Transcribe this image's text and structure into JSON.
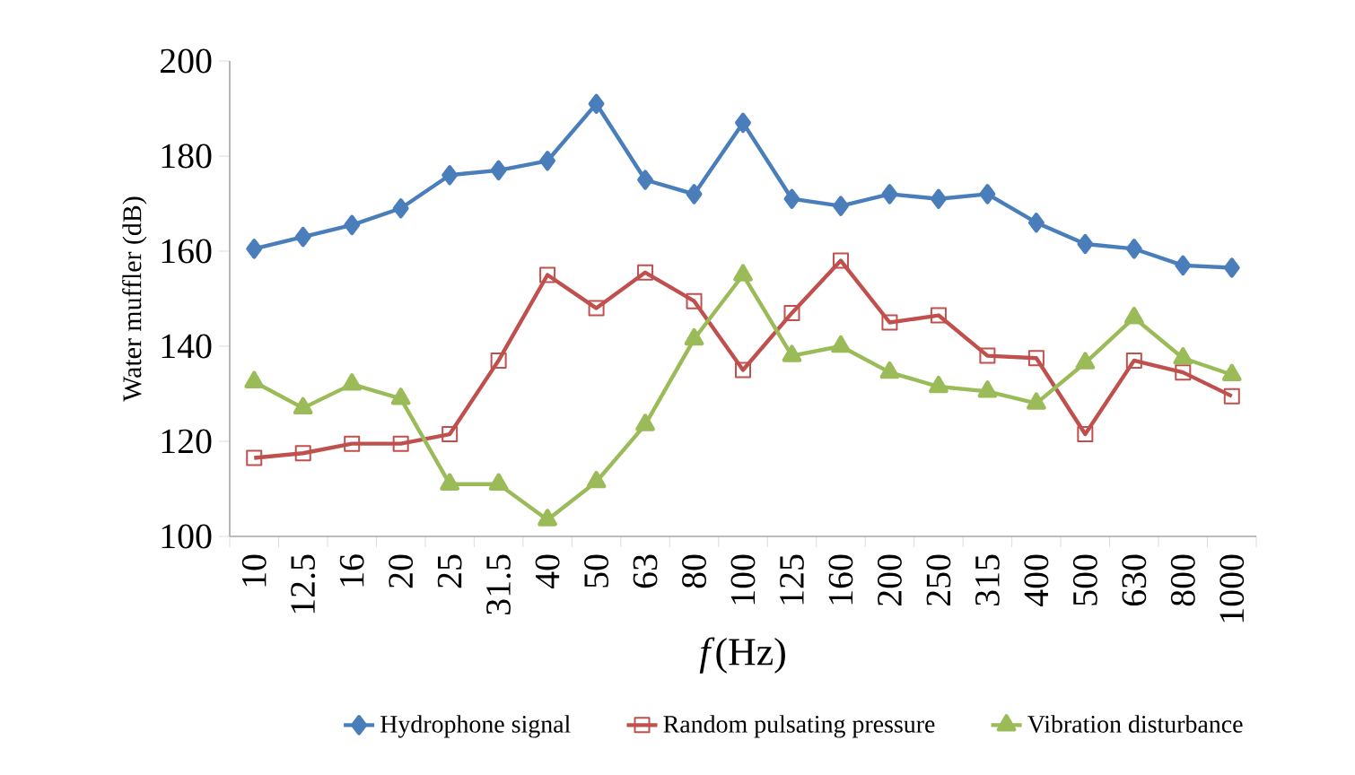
{
  "chart_data": {
    "type": "line",
    "xlabel": "*f*(Hz)",
    "ylabel": "Water muffler (dB)",
    "categories": [
      "10",
      "12.5",
      "16",
      "20",
      "25",
      "31.5",
      "40",
      "50",
      "63",
      "80",
      "100",
      "125",
      "160",
      "200",
      "250",
      "315",
      "400",
      "500",
      "630",
      "800",
      "1000"
    ],
    "ylim": [
      100,
      200
    ],
    "yticks": [
      100,
      120,
      140,
      160,
      180,
      200
    ],
    "grid": false,
    "legend": "bottom",
    "series": [
      {
        "name": "Hydrophone signal",
        "color": "#4a7ebb",
        "marker": "diamond",
        "values": [
          160.5,
          163,
          165.5,
          169,
          176,
          177,
          179,
          191,
          175,
          172,
          187,
          171,
          169.5,
          172,
          171,
          172,
          166,
          161.5,
          160.5,
          157,
          156.5
        ]
      },
      {
        "name": "Random pulsating pressure",
        "color": "#c0504d",
        "marker": "square",
        "values": [
          116.5,
          117.5,
          119.5,
          119.5,
          121.5,
          137,
          155,
          148,
          155.5,
          149.5,
          135,
          147,
          158,
          145,
          146.5,
          138,
          137.5,
          121.5,
          137,
          134.5,
          129.5
        ]
      },
      {
        "name": "Vibration disturbance",
        "color": "#9bbb59",
        "marker": "triangle",
        "values": [
          132.5,
          127,
          132,
          129,
          111,
          111,
          103.5,
          111.5,
          123.5,
          141.5,
          155,
          138,
          140,
          134.5,
          131.5,
          130.5,
          128,
          136.5,
          146,
          137.5,
          134
        ]
      }
    ]
  }
}
